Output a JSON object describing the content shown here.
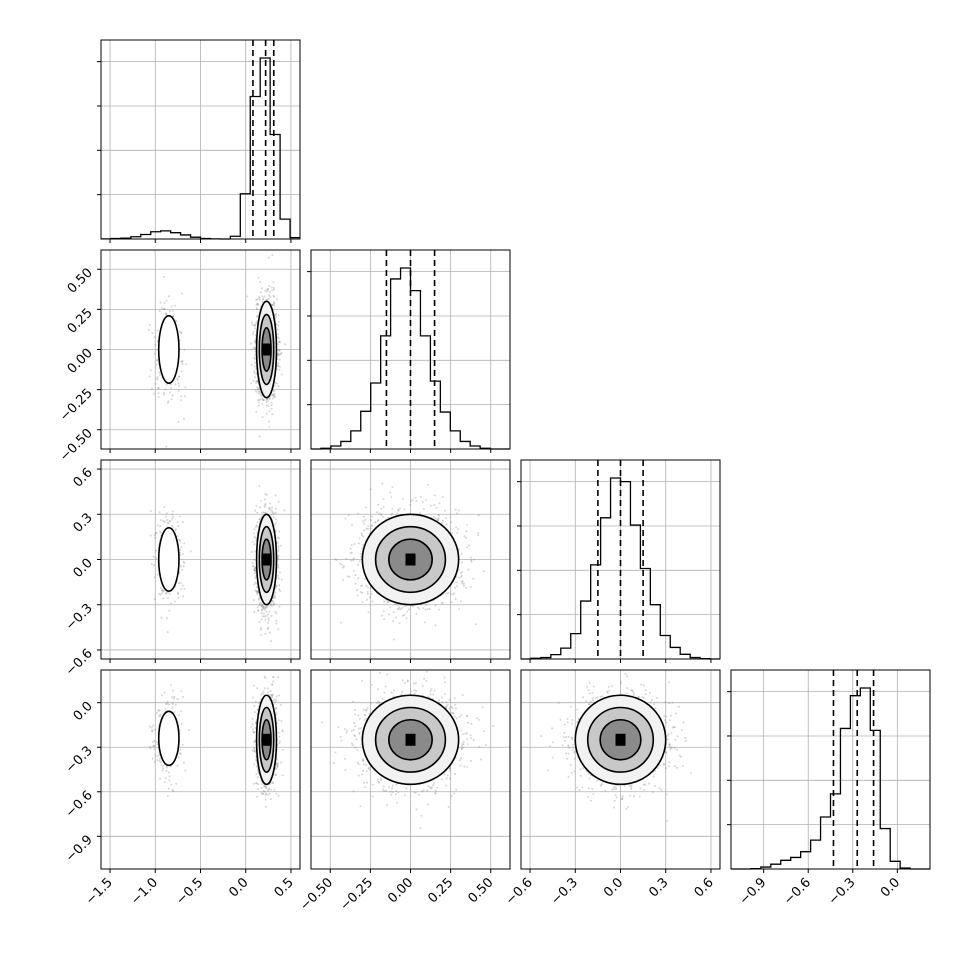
{
  "chart_data": {
    "type": "corner",
    "title": "",
    "parameters": [
      "",
      "",
      "",
      ""
    ],
    "quantiles": [
      0.16,
      0.5,
      0.84
    ],
    "grid": true,
    "contour_levels": 3,
    "colors": {
      "line": "#000000",
      "grid": "#b0b0b0",
      "point": "#888888",
      "fill": "#000000"
    },
    "axes": [
      {
        "range": [
          -1.6,
          0.6
        ],
        "ticks": [
          -1.5,
          -1.0,
          -0.5,
          0.0,
          0.5
        ],
        "tick_labels": [
          "−1.5",
          "−1.0",
          "−0.5",
          "0.0",
          "0.5"
        ]
      },
      {
        "range": [
          -0.62,
          0.62
        ],
        "ticks": [
          -0.5,
          -0.25,
          0.0,
          0.25,
          0.5
        ],
        "tick_labels": [
          "−0.50",
          "−0.25",
          "0.00",
          "0.25",
          "0.50"
        ]
      },
      {
        "range": [
          -0.66,
          0.66
        ],
        "ticks": [
          -0.6,
          -0.3,
          0.0,
          0.3,
          0.6
        ],
        "tick_labels": [
          "−0.6",
          "−0.3",
          "0.0",
          "0.3",
          "0.6"
        ]
      },
      {
        "range": [
          -1.12,
          0.22
        ],
        "ticks": [
          -0.9,
          -0.6,
          -0.3,
          0.0
        ],
        "tick_labels": [
          "−0.9",
          "−0.6",
          "−0.3",
          "0.0"
        ]
      }
    ],
    "histograms": [
      {
        "bin_edges": [
          -1.6,
          -1.49,
          -1.38,
          -1.27,
          -1.16,
          -1.05,
          -0.94,
          -0.83,
          -0.72,
          -0.61,
          -0.5,
          -0.39,
          -0.28,
          -0.17,
          -0.06,
          0.05,
          0.16,
          0.27,
          0.38,
          0.49,
          0.6
        ],
        "counts": [
          0.2,
          1,
          2,
          5,
          10,
          16,
          18,
          14,
          9,
          4,
          1,
          0.3,
          0,
          6,
          100,
          315,
          400,
          231,
          44,
          3
        ],
        "quantiles": [
          0.08,
          0.22,
          0.31
        ]
      },
      {
        "bin_edges": [
          -0.62,
          -0.558,
          -0.496,
          -0.434,
          -0.372,
          -0.31,
          -0.248,
          -0.186,
          -0.124,
          -0.062,
          0.0,
          0.062,
          0.124,
          0.186,
          0.248,
          0.31,
          0.372,
          0.434,
          0.496,
          0.558,
          0.62
        ],
        "counts": [
          0,
          2,
          8,
          20,
          48,
          100,
          175,
          300,
          451,
          480,
          420,
          300,
          180,
          98,
          48,
          20,
          8,
          2,
          0,
          0
        ],
        "quantiles": [
          -0.15,
          0.0,
          0.15
        ]
      },
      {
        "bin_edges": [
          -0.66,
          -0.594,
          -0.528,
          -0.462,
          -0.396,
          -0.33,
          -0.264,
          -0.198,
          -0.132,
          -0.066,
          0.0,
          0.066,
          0.132,
          0.198,
          0.264,
          0.33,
          0.396,
          0.462,
          0.528,
          0.594,
          0.66
        ],
        "counts": [
          0,
          2,
          4,
          12,
          30,
          70,
          160,
          260,
          390,
          500,
          490,
          370,
          250,
          150,
          65,
          32,
          13,
          4,
          1,
          0
        ],
        "quantiles": [
          -0.15,
          0.0,
          0.15
        ]
      },
      {
        "bin_edges": [
          -1.12,
          -1.053,
          -0.986,
          -0.919,
          -0.852,
          -0.785,
          -0.718,
          -0.651,
          -0.584,
          -0.517,
          -0.45,
          -0.383,
          -0.316,
          -0.249,
          -0.182,
          -0.115,
          -0.048,
          0.019,
          0.086,
          0.153,
          0.22
        ],
        "counts": [
          0,
          0,
          2,
          10,
          25,
          45,
          60,
          90,
          150,
          270,
          390,
          730,
          900,
          940,
          720,
          210,
          40,
          5,
          0,
          0
        ],
        "quantiles": [
          -0.43,
          -0.27,
          -0.16
        ]
      }
    ],
    "components": [
      {
        "weight": 0.16,
        "mean": [
          -0.85,
          0.0,
          0.0,
          -0.24
        ],
        "sd": [
          0.08,
          0.15,
          0.15,
          0.13
        ]
      },
      {
        "weight": 0.84,
        "mean": [
          0.23,
          0.0,
          0.0,
          -0.25
        ],
        "sd": [
          0.055,
          0.15,
          0.15,
          0.15
        ]
      }
    ],
    "points_per_panel": 1800
  }
}
